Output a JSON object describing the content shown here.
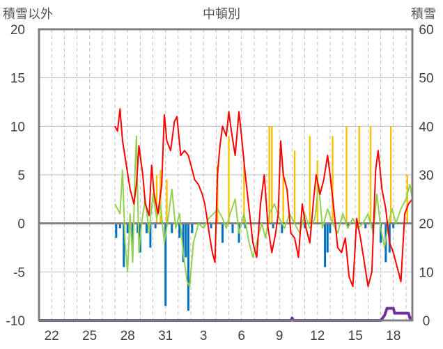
{
  "chart_data": {
    "type": "line",
    "title": "中頓別",
    "ylabel_left": "積雪以外",
    "ylabel_right": "積雪",
    "ylim_left": [
      -10,
      20
    ],
    "ylim_right": [
      0,
      60
    ],
    "yticks_left": [
      "20",
      "15",
      "10",
      "5",
      "0",
      "-5",
      "-10"
    ],
    "yticks_right": [
      "60",
      "50",
      "40",
      "30",
      "20",
      "10",
      "0"
    ],
    "x_tick_labels": [
      "22",
      "25",
      "28",
      "31",
      "3",
      "6",
      "9",
      "12",
      "15",
      "18"
    ],
    "x_tick_days": [
      1,
      4,
      7,
      10,
      13,
      16,
      19,
      22,
      25,
      28
    ],
    "x_range": [
      0,
      29.5
    ],
    "grid": {
      "vertical_dashed": true,
      "horizontal": true
    },
    "colors": {
      "temperature": "#ff0000",
      "wind": "#92d050",
      "sunshine": "#ffc000",
      "precipitation": "#0070c0",
      "snow_depth": "#7030a0",
      "frame": "#808080",
      "grid": "#bfbfbf",
      "zero_line": "#808080"
    },
    "series": [
      {
        "key": "temperature",
        "axis": "left",
        "points": [
          [
            6.0,
            10.0
          ],
          [
            6.2,
            9.5
          ],
          [
            6.4,
            11.8
          ],
          [
            6.6,
            8.5
          ],
          [
            6.9,
            6.0
          ],
          [
            7.2,
            3.5
          ],
          [
            7.5,
            2.0
          ],
          [
            7.7,
            4.0
          ],
          [
            7.9,
            8.0
          ],
          [
            8.2,
            5.0
          ],
          [
            8.4,
            2.0
          ],
          [
            8.7,
            0.8
          ],
          [
            8.9,
            6.0
          ],
          [
            9.1,
            3.0
          ],
          [
            9.4,
            1.0
          ],
          [
            9.7,
            4.0
          ],
          [
            9.9,
            11.2
          ],
          [
            10.1,
            8.5
          ],
          [
            10.4,
            7.5
          ],
          [
            10.7,
            10.5
          ],
          [
            10.9,
            11.0
          ],
          [
            11.2,
            7.0
          ],
          [
            11.5,
            7.5
          ],
          [
            11.8,
            7.0
          ],
          [
            12.1,
            5.5
          ],
          [
            12.3,
            4.5
          ],
          [
            12.6,
            4.0
          ],
          [
            12.9,
            3.0
          ],
          [
            13.1,
            2.0
          ],
          [
            13.3,
            0.3
          ],
          [
            13.5,
            -1.5
          ],
          [
            13.7,
            -3.0
          ],
          [
            13.9,
            -4.0
          ],
          [
            14.1,
            5.0
          ],
          [
            14.3,
            8.0
          ],
          [
            14.5,
            10.0
          ],
          [
            14.8,
            9.0
          ],
          [
            15.0,
            11.5
          ],
          [
            15.2,
            9.5
          ],
          [
            15.5,
            7.0
          ],
          [
            15.8,
            11.5
          ],
          [
            16.0,
            9.0
          ],
          [
            16.3,
            5.0
          ],
          [
            16.6,
            1.5
          ],
          [
            16.9,
            -2.0
          ],
          [
            17.2,
            -3.5
          ],
          [
            17.5,
            2.0
          ],
          [
            17.8,
            5.0
          ],
          [
            18.1,
            -0.5
          ],
          [
            18.4,
            -3.0
          ],
          [
            18.7,
            -1.0
          ],
          [
            18.9,
            1.0
          ],
          [
            19.1,
            8.5
          ],
          [
            19.3,
            5.0
          ],
          [
            19.6,
            3.5
          ],
          [
            19.9,
            -1.0
          ],
          [
            20.2,
            -1.5
          ],
          [
            20.5,
            -3.5
          ],
          [
            20.8,
            2.0
          ],
          [
            21.1,
            -0.5
          ],
          [
            21.4,
            -2.0
          ],
          [
            21.7,
            2.5
          ],
          [
            21.9,
            5.0
          ],
          [
            22.2,
            3.0
          ],
          [
            22.5,
            4.5
          ],
          [
            22.8,
            7.0
          ],
          [
            23.0,
            5.0
          ],
          [
            23.3,
            1.5
          ],
          [
            23.6,
            -2.5
          ],
          [
            23.9,
            -3.0
          ],
          [
            24.2,
            -1.5
          ],
          [
            24.5,
            -5.5
          ],
          [
            24.8,
            -6.5
          ],
          [
            25.1,
            0.5
          ],
          [
            25.4,
            -1.5
          ],
          [
            25.7,
            -4.0
          ],
          [
            26.0,
            -6.5
          ],
          [
            26.3,
            -5.0
          ],
          [
            26.6,
            5.5
          ],
          [
            26.8,
            7.5
          ],
          [
            27.1,
            3.5
          ],
          [
            27.4,
            1.5
          ],
          [
            27.7,
            -2.0
          ],
          [
            28.0,
            -3.0
          ],
          [
            28.3,
            -4.5
          ],
          [
            28.6,
            -6.0
          ],
          [
            28.9,
            1.0
          ],
          [
            29.2,
            2.0
          ],
          [
            29.5,
            2.5
          ]
        ]
      },
      {
        "key": "wind",
        "axis": "left",
        "points": [
          [
            6.0,
            2.0
          ],
          [
            6.4,
            1.0
          ],
          [
            6.6,
            5.5
          ],
          [
            6.8,
            -2.0
          ],
          [
            7.0,
            -5.0
          ],
          [
            7.2,
            1.0
          ],
          [
            7.4,
            -4.0
          ],
          [
            7.6,
            6.0
          ],
          [
            7.7,
            9.0
          ],
          [
            7.9,
            -3.0
          ],
          [
            8.1,
            0.0
          ],
          [
            8.4,
            2.5
          ],
          [
            8.7,
            -1.0
          ],
          [
            9.0,
            3.0
          ],
          [
            9.3,
            0.5
          ],
          [
            9.6,
            2.0
          ],
          [
            9.9,
            -2.0
          ],
          [
            10.2,
            0.5
          ],
          [
            10.5,
            3.5
          ],
          [
            10.8,
            -0.5
          ],
          [
            11.1,
            1.0
          ],
          [
            11.4,
            -3.0
          ],
          [
            11.7,
            -6.0
          ],
          [
            11.9,
            -6.5
          ],
          [
            12.2,
            -2.0
          ],
          [
            12.6,
            0.0
          ],
          [
            13.0,
            -0.5
          ],
          [
            13.4,
            0.5
          ],
          [
            13.8,
            1.0
          ],
          [
            14.1,
            1.5
          ],
          [
            14.5,
            0.5
          ],
          [
            14.8,
            -0.5
          ],
          [
            15.1,
            1.0
          ],
          [
            15.5,
            2.5
          ],
          [
            15.8,
            -1.0
          ],
          [
            16.2,
            1.0
          ],
          [
            16.6,
            -2.0
          ],
          [
            16.9,
            -3.5
          ],
          [
            17.2,
            -2.0
          ],
          [
            17.6,
            0.0
          ],
          [
            17.9,
            -1.5
          ],
          [
            18.2,
            1.0
          ],
          [
            18.6,
            2.0
          ],
          [
            19.0,
            0.5
          ],
          [
            19.4,
            -0.5
          ],
          [
            19.8,
            1.0
          ],
          [
            20.2,
            0.0
          ],
          [
            20.6,
            -1.0
          ],
          [
            21.0,
            1.0
          ],
          [
            21.4,
            -0.5
          ],
          [
            21.8,
            0.5
          ],
          [
            22.1,
            4.0
          ],
          [
            22.4,
            -0.5
          ],
          [
            22.8,
            1.5
          ],
          [
            23.2,
            0.0
          ],
          [
            23.6,
            -1.0
          ],
          [
            24.0,
            1.0
          ],
          [
            24.4,
            -0.5
          ],
          [
            24.8,
            0.5
          ],
          [
            25.2,
            -0.5
          ],
          [
            25.6,
            0.0
          ],
          [
            26.0,
            1.0
          ],
          [
            26.4,
            -1.0
          ],
          [
            26.7,
            3.0
          ],
          [
            27.0,
            -0.5
          ],
          [
            27.3,
            -2.5
          ],
          [
            27.6,
            0.0
          ],
          [
            27.9,
            1.5
          ],
          [
            28.2,
            0.0
          ],
          [
            28.6,
            1.5
          ],
          [
            29.0,
            2.5
          ],
          [
            29.3,
            4.0
          ],
          [
            29.5,
            2.5
          ]
        ]
      },
      {
        "key": "sunshine",
        "axis": "left",
        "spikes": [
          [
            9.3,
            5.0
          ],
          [
            9.6,
            5.5
          ],
          [
            10.1,
            4.5
          ],
          [
            14.1,
            6.0
          ],
          [
            15.0,
            9.0
          ],
          [
            16.2,
            6.0
          ],
          [
            18.2,
            10.0
          ],
          [
            18.4,
            10.0
          ],
          [
            19.3,
            5.5
          ],
          [
            20.2,
            7.5
          ],
          [
            21.4,
            9.0
          ],
          [
            22.0,
            6.5
          ],
          [
            23.2,
            9.0
          ],
          [
            24.3,
            10.0
          ],
          [
            25.3,
            10.0
          ],
          [
            26.2,
            10.0
          ],
          [
            27.8,
            10.0
          ],
          [
            29.1,
            5.0
          ]
        ]
      },
      {
        "key": "precipitation",
        "axis": "left",
        "bars": [
          [
            6.1,
            -1.5
          ],
          [
            6.4,
            -0.5
          ],
          [
            6.7,
            -4.5
          ],
          [
            7.0,
            -1.0
          ],
          [
            7.4,
            -2.0
          ],
          [
            7.8,
            -1.0
          ],
          [
            8.0,
            -3.0
          ],
          [
            8.5,
            -1.0
          ],
          [
            8.8,
            -2.5
          ],
          [
            9.2,
            -0.5
          ],
          [
            10.0,
            -8.5
          ],
          [
            10.5,
            -1.0
          ],
          [
            11.1,
            -1.5
          ],
          [
            11.4,
            -4.0
          ],
          [
            11.6,
            -3.5
          ],
          [
            11.8,
            -9.0
          ],
          [
            12.1,
            -1.0
          ],
          [
            13.6,
            -0.5
          ],
          [
            14.5,
            -2.0
          ],
          [
            15.3,
            -1.0
          ],
          [
            15.8,
            -2.0
          ],
          [
            16.3,
            -0.5
          ],
          [
            18.5,
            -0.5
          ],
          [
            19.2,
            -1.0
          ],
          [
            21.0,
            -0.5
          ],
          [
            22.6,
            -4.5
          ],
          [
            22.8,
            -3.0
          ],
          [
            23.0,
            -1.0
          ],
          [
            24.4,
            -0.5
          ],
          [
            25.8,
            -0.5
          ],
          [
            26.4,
            -1.0
          ],
          [
            27.0,
            -2.0
          ],
          [
            27.4,
            -4.0
          ],
          [
            27.7,
            -3.0
          ],
          [
            28.0,
            -0.5
          ]
        ]
      },
      {
        "key": "snow_depth",
        "axis": "right",
        "points": [
          [
            0,
            0
          ],
          [
            19.9,
            0
          ],
          [
            20.0,
            0.5
          ],
          [
            20.1,
            0
          ],
          [
            27.0,
            0
          ],
          [
            27.3,
            1.0
          ],
          [
            27.5,
            2.5
          ],
          [
            28.0,
            2.5
          ],
          [
            28.1,
            1.5
          ],
          [
            29.2,
            1.5
          ],
          [
            29.3,
            0.5
          ],
          [
            29.5,
            0.5
          ]
        ]
      }
    ]
  }
}
